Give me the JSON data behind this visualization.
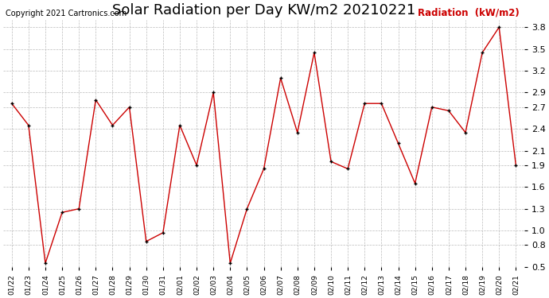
{
  "title": "Solar Radiation per Day KW/m2 20210221",
  "copyright_text": "Copyright 2021 Cartronics.com",
  "legend_label": "Radiation  (kW/m2)",
  "dates": [
    "01/22",
    "01/23",
    "01/24",
    "01/25",
    "01/26",
    "01/27",
    "01/28",
    "01/29",
    "01/30",
    "01/31",
    "02/01",
    "02/02",
    "02/03",
    "02/04",
    "02/05",
    "02/06",
    "02/07",
    "02/08",
    "02/09",
    "02/10",
    "02/11",
    "02/12",
    "02/13",
    "02/14",
    "02/15",
    "02/16",
    "02/17",
    "02/18",
    "02/19",
    "02/20",
    "02/21"
  ],
  "values": [
    2.75,
    2.45,
    0.55,
    1.25,
    1.3,
    2.8,
    2.45,
    2.7,
    0.85,
    0.97,
    2.45,
    1.9,
    2.9,
    0.55,
    1.3,
    1.85,
    3.1,
    2.35,
    3.45,
    1.95,
    1.85,
    2.75,
    2.75,
    2.2,
    1.65,
    2.7,
    2.65,
    2.35,
    3.45,
    3.8,
    1.9
  ],
  "line_color": "#cc0000",
  "marker_color": "#000000",
  "grid_color": "#bbbbbb",
  "background_color": "#ffffff",
  "title_fontsize": 13,
  "ylim": [
    0.5,
    3.9
  ],
  "yticks": [
    0.5,
    0.8,
    1.0,
    1.3,
    1.6,
    1.9,
    2.1,
    2.4,
    2.7,
    2.9,
    3.2,
    3.5,
    3.8
  ]
}
